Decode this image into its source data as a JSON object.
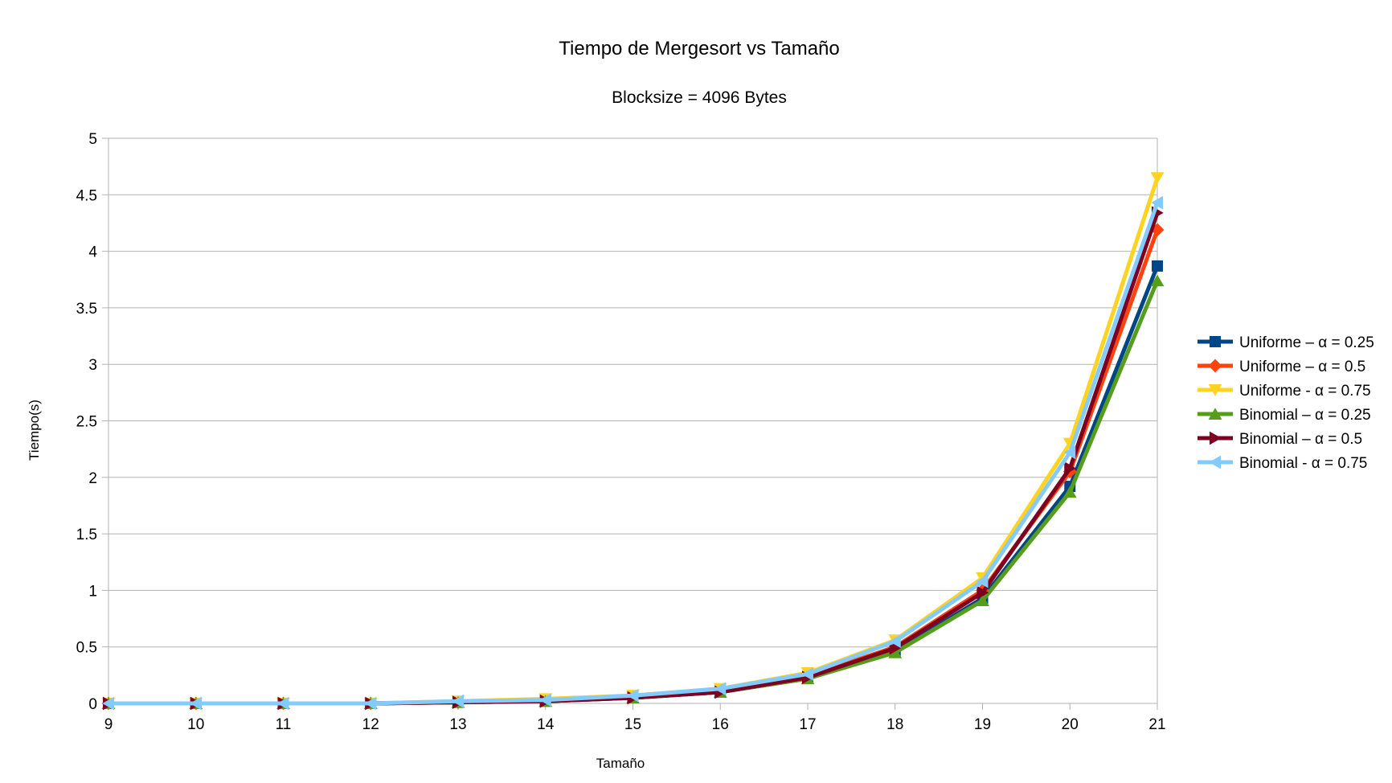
{
  "chart_data": {
    "type": "line",
    "title": "Tiempo de Mergesort vs Tamaño",
    "subtitle": "Blocksize = 4096 Bytes",
    "xlabel": "Tamaño",
    "ylabel": "Tiempo(s)",
    "x": [
      9,
      10,
      11,
      12,
      13,
      14,
      15,
      16,
      17,
      18,
      19,
      20,
      21
    ],
    "ylim": [
      0,
      5
    ],
    "yticks": [
      "0",
      "0.5",
      "1",
      "1.5",
      "2",
      "2.5",
      "3",
      "3.5",
      "4",
      "4.5",
      "5"
    ],
    "grid": "horizontal",
    "legend_position": "right",
    "series": [
      {
        "name": "Uniforme – α = 0.25",
        "color": "#004586",
        "marker": "square",
        "values": [
          0,
          0,
          0,
          0,
          0.01,
          0.02,
          0.05,
          0.1,
          0.22,
          0.46,
          0.93,
          1.92,
          3.87
        ]
      },
      {
        "name": "Uniforme – α = 0.5",
        "color": "#ff420e",
        "marker": "diamond",
        "values": [
          0,
          0,
          0,
          0,
          0.01,
          0.03,
          0.06,
          0.11,
          0.24,
          0.5,
          1.0,
          2.05,
          4.19
        ]
      },
      {
        "name": "Uniforme - α = 0.75",
        "color": "#ffd320",
        "marker": "triangle-down",
        "values": [
          0,
          0,
          0,
          0,
          0.02,
          0.04,
          0.07,
          0.13,
          0.27,
          0.56,
          1.11,
          2.3,
          4.65
        ]
      },
      {
        "name": "Binomial – α = 0.25",
        "color": "#579d1c",
        "marker": "triangle-up",
        "values": [
          0,
          0,
          0,
          0,
          0.01,
          0.02,
          0.05,
          0.1,
          0.22,
          0.45,
          0.91,
          1.87,
          3.74
        ]
      },
      {
        "name": "Binomial – α = 0.5",
        "color": "#7e0021",
        "marker": "triangle-right",
        "values": [
          0,
          0,
          0,
          0,
          0.01,
          0.02,
          0.05,
          0.1,
          0.23,
          0.49,
          0.98,
          2.08,
          4.34
        ]
      },
      {
        "name": "Binomial - α = 0.75",
        "color": "#83caff",
        "marker": "triangle-left",
        "values": [
          0,
          0,
          0,
          0,
          0.02,
          0.03,
          0.07,
          0.13,
          0.26,
          0.55,
          1.08,
          2.22,
          4.43
        ]
      }
    ]
  }
}
